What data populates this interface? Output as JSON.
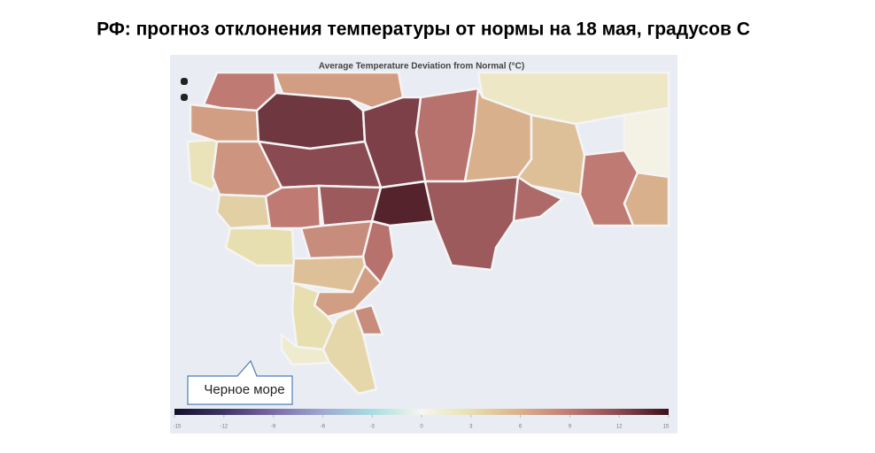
{
  "header": {
    "title": "РФ: прогноз отклонения температуры от нормы на 18 мая, градусов С"
  },
  "map": {
    "type": "choropleth",
    "title": "Average Temperature Deviation from Normal (°C)",
    "values": [
      9,
      7,
      2,
      0.5,
      2.5,
      7,
      13,
      9.5,
      6,
      5,
      9,
      6,
      12.5,
      12,
      7.5,
      4,
      9,
      11,
      14,
      11,
      10,
      3,
      8,
      9.5,
      5,
      7,
      3,
      1.5,
      3.5,
      8
    ],
    "lim": [
      -15,
      15
    ],
    "ticks": [
      -15,
      -12,
      -9,
      -6,
      -3,
      0,
      3,
      6,
      9,
      12,
      15
    ],
    "colorscale": [
      "#14102a",
      "#3e3566",
      "#7a6aa8",
      "#9fa9d2",
      "#a8dde0",
      "#f6f6ee",
      "#e8dfb0",
      "#d9b08c",
      "#c07a74",
      "#8a4a52",
      "#3a1018"
    ],
    "background": "#e9edf3"
  },
  "callout": {
    "label": "Черное море"
  }
}
